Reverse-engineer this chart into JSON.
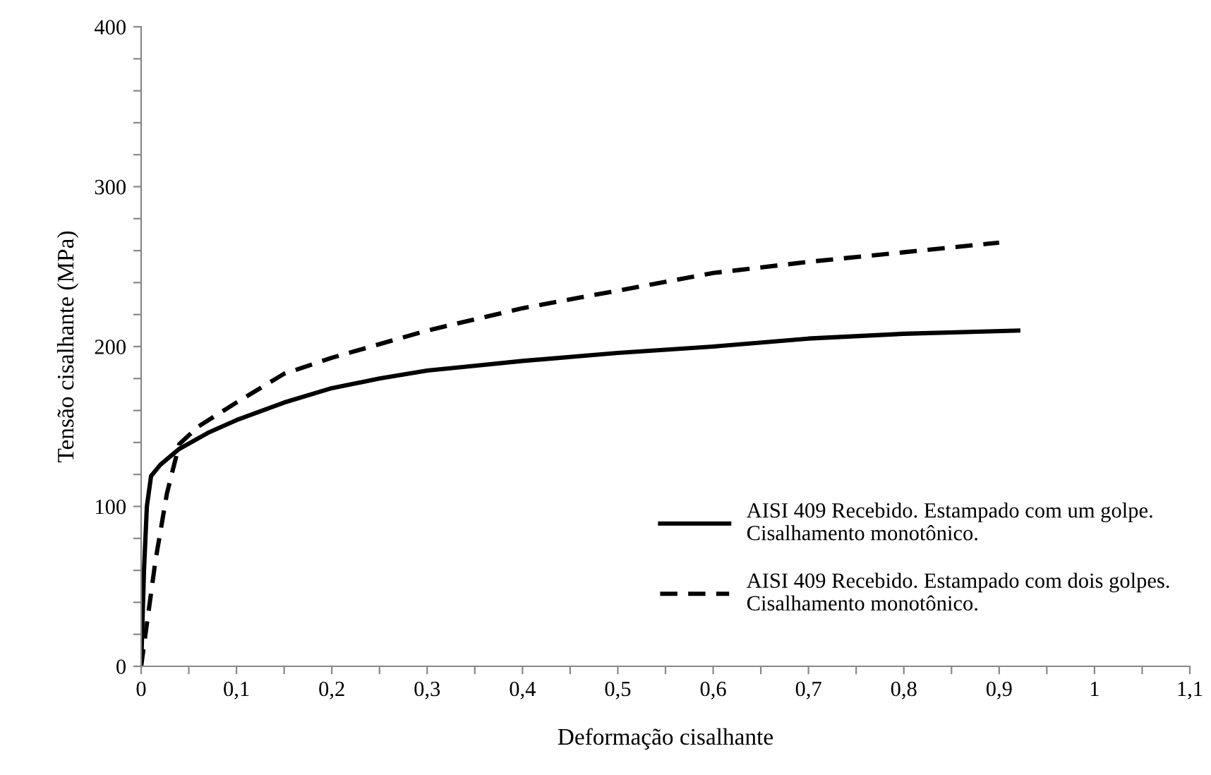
{
  "chart_data": {
    "type": "line",
    "xlabel": "Deformação cisalhante",
    "ylabel": "Tensão cisalhante (MPa)",
    "xlim": [
      0,
      1.1
    ],
    "ylim": [
      0,
      400
    ],
    "xticks": [
      0,
      {
        "value": 0.05,
        "label": null
      },
      {
        "value": 0.1,
        "label": "0,1"
      },
      {
        "value": 0.15,
        "label": null
      },
      {
        "value": 0.2,
        "label": "0,2"
      },
      {
        "value": 0.25,
        "label": null
      },
      {
        "value": 0.3,
        "label": "0,3"
      },
      {
        "value": 0.35,
        "label": null
      },
      {
        "value": 0.4,
        "label": "0,4"
      },
      {
        "value": 0.45,
        "label": null
      },
      {
        "value": 0.5,
        "label": "0,5"
      },
      {
        "value": 0.55,
        "label": null
      },
      {
        "value": 0.6,
        "label": "0,6"
      },
      {
        "value": 0.65,
        "label": null
      },
      {
        "value": 0.7,
        "label": "0,7"
      },
      {
        "value": 0.75,
        "label": null
      },
      {
        "value": 0.8,
        "label": "0,8"
      },
      {
        "value": 0.85,
        "label": null
      },
      {
        "value": 0.9,
        "label": "0,9"
      },
      {
        "value": 0.95,
        "label": null
      },
      1,
      {
        "value": 1.05,
        "label": null
      },
      {
        "value": 1.1,
        "label": "1,1"
      }
    ],
    "yticks": [
      0,
      {
        "value": 20,
        "label": null
      },
      {
        "value": 40,
        "label": null
      },
      {
        "value": 60,
        "label": null
      },
      {
        "value": 80,
        "label": null
      },
      100,
      {
        "value": 120,
        "label": null
      },
      {
        "value": 140,
        "label": null
      },
      {
        "value": 160,
        "label": null
      },
      {
        "value": 180,
        "label": null
      },
      200,
      {
        "value": 220,
        "label": null
      },
      {
        "value": 240,
        "label": null
      },
      {
        "value": 260,
        "label": null
      },
      {
        "value": 280,
        "label": null
      },
      300,
      {
        "value": 320,
        "label": null
      },
      {
        "value": 340,
        "label": null
      },
      {
        "value": 360,
        "label": null
      },
      {
        "value": 380,
        "label": null
      },
      400
    ],
    "grid": false,
    "legend": "right",
    "marker": "none",
    "series": [
      {
        "name": "AISI 409 Recebido. Estampado com um golpe. Cisalhamento monotônico.",
        "color": "#000000",
        "line_style": "solid",
        "x": [
          0,
          0.003,
          0.006,
          0.0104,
          0.02,
          0.04,
          0.07,
          0.1,
          0.15,
          0.2,
          0.25,
          0.3,
          0.35,
          0.4,
          0.5,
          0.6,
          0.7,
          0.8,
          0.92
        ],
        "values": [
          0,
          60,
          100,
          119,
          126,
          136,
          146,
          154,
          165,
          174,
          180,
          185,
          188,
          191,
          196,
          200,
          205,
          208,
          210
        ]
      },
      {
        "name": "AISI 409 Recebido. Estampado com dois golpes. Cisalhamento monotônico.",
        "color": "#000000",
        "line_style": "dashed",
        "x": [
          0,
          0.005,
          0.015,
          0.027,
          0.04,
          0.06,
          0.1,
          0.15,
          0.2,
          0.3,
          0.4,
          0.5,
          0.6,
          0.7,
          0.8,
          0.9
        ],
        "values": [
          0,
          22,
          66,
          108,
          139,
          150,
          165,
          183,
          193,
          210,
          224,
          235,
          246,
          253,
          259,
          265
        ]
      }
    ]
  }
}
